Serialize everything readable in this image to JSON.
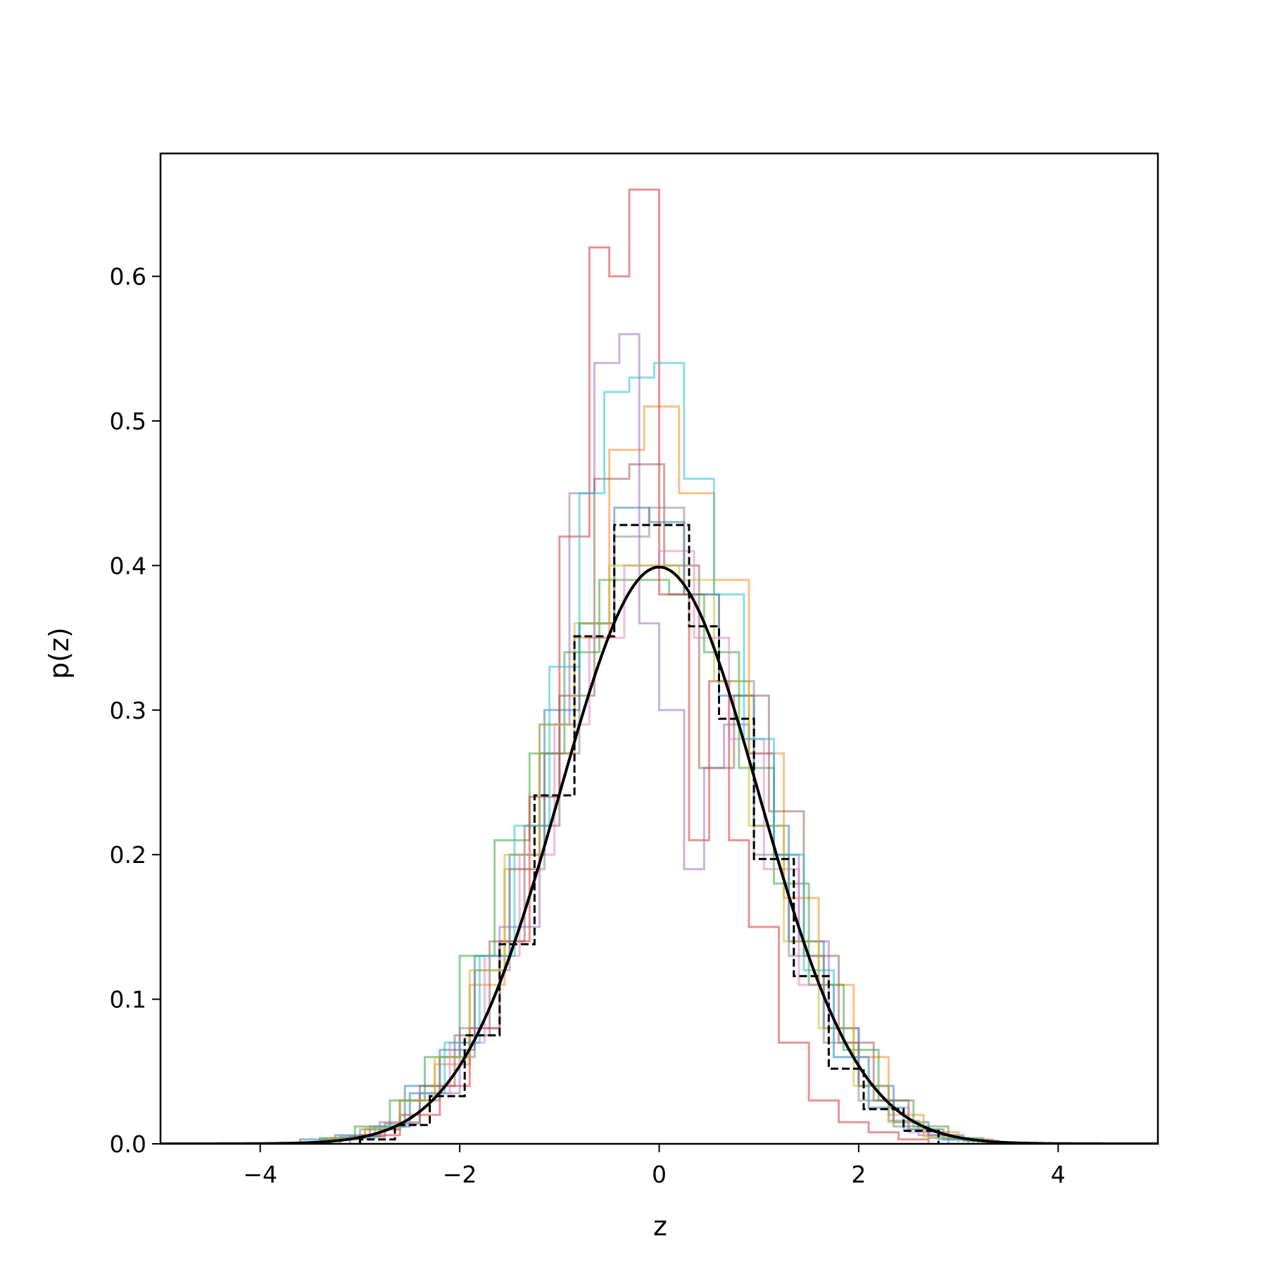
{
  "chart_data": {
    "type": "histogram",
    "xlabel": "z",
    "ylabel": "p(z)",
    "xlim": [
      -5,
      5
    ],
    "ylim": [
      0,
      0.685
    ],
    "grid": false,
    "xticks": [
      -4,
      -2,
      0,
      2,
      4
    ],
    "xtick_labels": [
      "−4",
      "−2",
      "0",
      "2",
      "4"
    ],
    "yticks": [
      0.0,
      0.1,
      0.2,
      0.3,
      0.4,
      0.5,
      0.6
    ],
    "ytick_labels": [
      "0.0",
      "0.1",
      "0.2",
      "0.3",
      "0.4",
      "0.5",
      "0.6"
    ],
    "colors": [
      "#1f77b4",
      "#ff7f0e",
      "#2ca02c",
      "#d62728",
      "#9467bd",
      "#8c564b",
      "#e377c2",
      "#7f7f7f",
      "#bcbd22",
      "#17becf"
    ],
    "sample_histograms": [
      {
        "edges": [
          -3.6,
          -3.25,
          -2.9,
          -2.55,
          -2.2,
          -1.85,
          -1.5,
          -1.15,
          -0.8,
          -0.45,
          -0.1,
          0.25,
          0.6,
          0.95,
          1.3,
          1.65,
          2.0,
          2.35,
          2.7,
          3.05,
          3.4
        ],
        "densities": [
          0.003,
          0.006,
          0.012,
          0.04,
          0.065,
          0.13,
          0.2,
          0.3,
          0.36,
          0.44,
          0.43,
          0.38,
          0.31,
          0.22,
          0.14,
          0.08,
          0.04,
          0.015,
          0.006,
          0.002
        ]
      },
      {
        "edges": [
          -3.3,
          -2.95,
          -2.6,
          -2.25,
          -1.9,
          -1.55,
          -1.2,
          -0.85,
          -0.5,
          -0.15,
          0.2,
          0.55,
          0.9,
          1.25,
          1.6,
          1.95,
          2.3,
          2.65,
          3.0,
          3.35
        ],
        "densities": [
          0.004,
          0.01,
          0.03,
          0.055,
          0.11,
          0.19,
          0.27,
          0.35,
          0.48,
          0.51,
          0.45,
          0.39,
          0.27,
          0.17,
          0.11,
          0.06,
          0.02,
          0.008,
          0.003
        ]
      },
      {
        "edges": [
          -3.4,
          -3.05,
          -2.7,
          -2.35,
          -2.0,
          -1.65,
          -1.3,
          -0.95,
          -0.6,
          -0.25,
          0.1,
          0.45,
          0.8,
          1.15,
          1.5,
          1.85,
          2.2,
          2.55,
          2.9,
          3.25
        ],
        "densities": [
          0.004,
          0.012,
          0.03,
          0.06,
          0.13,
          0.21,
          0.27,
          0.34,
          0.39,
          0.39,
          0.38,
          0.34,
          0.26,
          0.18,
          0.11,
          0.065,
          0.03,
          0.012,
          0.004
        ]
      },
      {
        "edges": [
          -3.0,
          -2.6,
          -2.2,
          -1.9,
          -1.6,
          -1.3,
          -1.0,
          -0.7,
          -0.5,
          -0.3,
          0.0,
          0.3,
          0.5,
          0.7,
          0.9,
          1.2,
          1.5,
          1.8,
          2.1,
          2.4,
          2.7
        ],
        "densities": [
          0.006,
          0.02,
          0.04,
          0.08,
          0.14,
          0.24,
          0.42,
          0.62,
          0.6,
          0.66,
          0.38,
          0.21,
          0.32,
          0.21,
          0.15,
          0.07,
          0.03,
          0.015,
          0.008,
          0.003
        ]
      },
      {
        "edges": [
          -3.2,
          -2.8,
          -2.4,
          -2.0,
          -1.6,
          -1.2,
          -0.9,
          -0.65,
          -0.4,
          -0.2,
          0.0,
          0.25,
          0.45,
          0.65,
          0.9,
          1.15,
          1.4,
          1.7,
          2.0,
          2.3,
          2.6,
          2.9
        ],
        "densities": [
          0.005,
          0.015,
          0.035,
          0.08,
          0.15,
          0.29,
          0.45,
          0.54,
          0.56,
          0.36,
          0.3,
          0.19,
          0.26,
          0.29,
          0.27,
          0.2,
          0.14,
          0.08,
          0.04,
          0.016,
          0.006
        ]
      },
      {
        "edges": [
          -3.1,
          -2.75,
          -2.4,
          -2.05,
          -1.7,
          -1.35,
          -1.0,
          -0.65,
          -0.3,
          0.05,
          0.4,
          0.75,
          1.1,
          1.45,
          1.8,
          2.15,
          2.5,
          2.85,
          3.2
        ],
        "densities": [
          0.005,
          0.014,
          0.04,
          0.075,
          0.14,
          0.22,
          0.31,
          0.46,
          0.47,
          0.4,
          0.26,
          0.31,
          0.23,
          0.13,
          0.07,
          0.03,
          0.01,
          0.003
        ]
      },
      {
        "edges": [
          -3.3,
          -2.9,
          -2.5,
          -2.1,
          -1.75,
          -1.4,
          -1.05,
          -0.7,
          -0.35,
          0.0,
          0.35,
          0.7,
          1.05,
          1.4,
          1.75,
          2.1,
          2.5,
          2.9,
          3.3
        ],
        "densities": [
          0.004,
          0.012,
          0.035,
          0.07,
          0.13,
          0.2,
          0.29,
          0.35,
          0.4,
          0.41,
          0.35,
          0.28,
          0.19,
          0.11,
          0.06,
          0.025,
          0.008,
          0.003
        ]
      },
      {
        "edges": [
          -3.4,
          -3.0,
          -2.6,
          -2.2,
          -1.85,
          -1.5,
          -1.15,
          -0.8,
          -0.45,
          -0.1,
          0.25,
          0.6,
          0.95,
          1.3,
          1.65,
          2.0,
          2.35,
          2.7,
          3.1
        ],
        "densities": [
          0.003,
          0.01,
          0.03,
          0.06,
          0.12,
          0.19,
          0.27,
          0.36,
          0.42,
          0.44,
          0.38,
          0.32,
          0.2,
          0.13,
          0.07,
          0.03,
          0.012,
          0.004
        ]
      },
      {
        "edges": [
          -3.3,
          -2.95,
          -2.6,
          -2.25,
          -1.9,
          -1.55,
          -1.2,
          -0.85,
          -0.5,
          -0.15,
          0.2,
          0.55,
          0.9,
          1.25,
          1.6,
          1.95,
          2.3,
          2.65,
          3.0
        ],
        "densities": [
          0.004,
          0.011,
          0.03,
          0.06,
          0.12,
          0.2,
          0.29,
          0.36,
          0.4,
          0.4,
          0.39,
          0.32,
          0.22,
          0.14,
          0.08,
          0.04,
          0.015,
          0.005
        ]
      },
      {
        "edges": [
          -3.2,
          -2.85,
          -2.5,
          -2.15,
          -1.8,
          -1.45,
          -1.1,
          -0.8,
          -0.55,
          -0.3,
          -0.05,
          0.25,
          0.55,
          0.85,
          1.15,
          1.45,
          1.75,
          2.1,
          2.45,
          2.8,
          3.15
        ],
        "densities": [
          0.004,
          0.012,
          0.035,
          0.07,
          0.13,
          0.22,
          0.33,
          0.45,
          0.52,
          0.53,
          0.54,
          0.46,
          0.38,
          0.28,
          0.2,
          0.12,
          0.06,
          0.025,
          0.01,
          0.003
        ]
      }
    ],
    "combined_histogram": {
      "style": "dashed",
      "color": "#000000",
      "edges": [
        -3.0,
        -2.65,
        -2.3,
        -1.95,
        -1.6,
        -1.25,
        -0.85,
        -0.45,
        0.3,
        0.6,
        0.95,
        1.35,
        1.7,
        2.05,
        2.45,
        2.8
      ],
      "densities": [
        0.003,
        0.013,
        0.033,
        0.075,
        0.138,
        0.241,
        0.351,
        0.428,
        0.358,
        0.294,
        0.197,
        0.116,
        0.052,
        0.024,
        0.009
      ]
    },
    "reference_curve": {
      "type": "line",
      "color": "#000000",
      "function": "standard normal pdf",
      "mean": 0,
      "std": 1
    }
  }
}
